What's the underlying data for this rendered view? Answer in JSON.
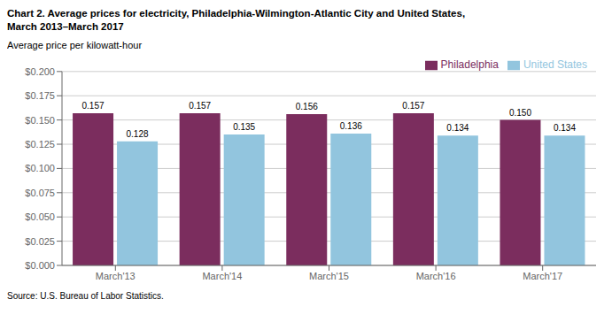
{
  "chart_data": {
    "type": "bar",
    "title": "Chart 2. Average prices for electricity, Philadelphia-Wilmington-Atlantic City and United States,",
    "subtitle": "March 2013–March 2017",
    "y_label": "Average price per kilowatt-hour",
    "annotations": [
      "Source: U.S. Bureau of Labor Statistics."
    ],
    "categories": [
      "March'13",
      "March'14",
      "March'15",
      "March'16",
      "March'17"
    ],
    "series": [
      {
        "name": "Philadelphia",
        "color": "#7B2D5E",
        "values": [
          0.157,
          0.157,
          0.156,
          0.157,
          0.15
        ],
        "value_labels": [
          "0.157",
          "0.157",
          "0.156",
          "0.157",
          "0.150"
        ]
      },
      {
        "name": "United States",
        "color": "#92C5DE",
        "values": [
          0.128,
          0.135,
          0.136,
          0.134,
          0.134
        ],
        "value_labels": [
          "0.128",
          "0.135",
          "0.136",
          "0.134",
          "0.134"
        ]
      }
    ],
    "ylim": [
      0.0,
      0.2
    ],
    "yticks": [
      {
        "value": 0.0,
        "label": "$0.000"
      },
      {
        "value": 0.025,
        "label": "$0.025"
      },
      {
        "value": 0.05,
        "label": "$0.050"
      },
      {
        "value": 0.075,
        "label": "$0.075"
      },
      {
        "value": 0.1,
        "label": "$0.100"
      },
      {
        "value": 0.125,
        "label": "$0.125"
      },
      {
        "value": 0.15,
        "label": "$0.150"
      },
      {
        "value": 0.175,
        "label": "$0.175"
      },
      {
        "value": 0.2,
        "label": "$0.200"
      }
    ],
    "grid": true,
    "legend": "upper right",
    "data_labels": true
  }
}
